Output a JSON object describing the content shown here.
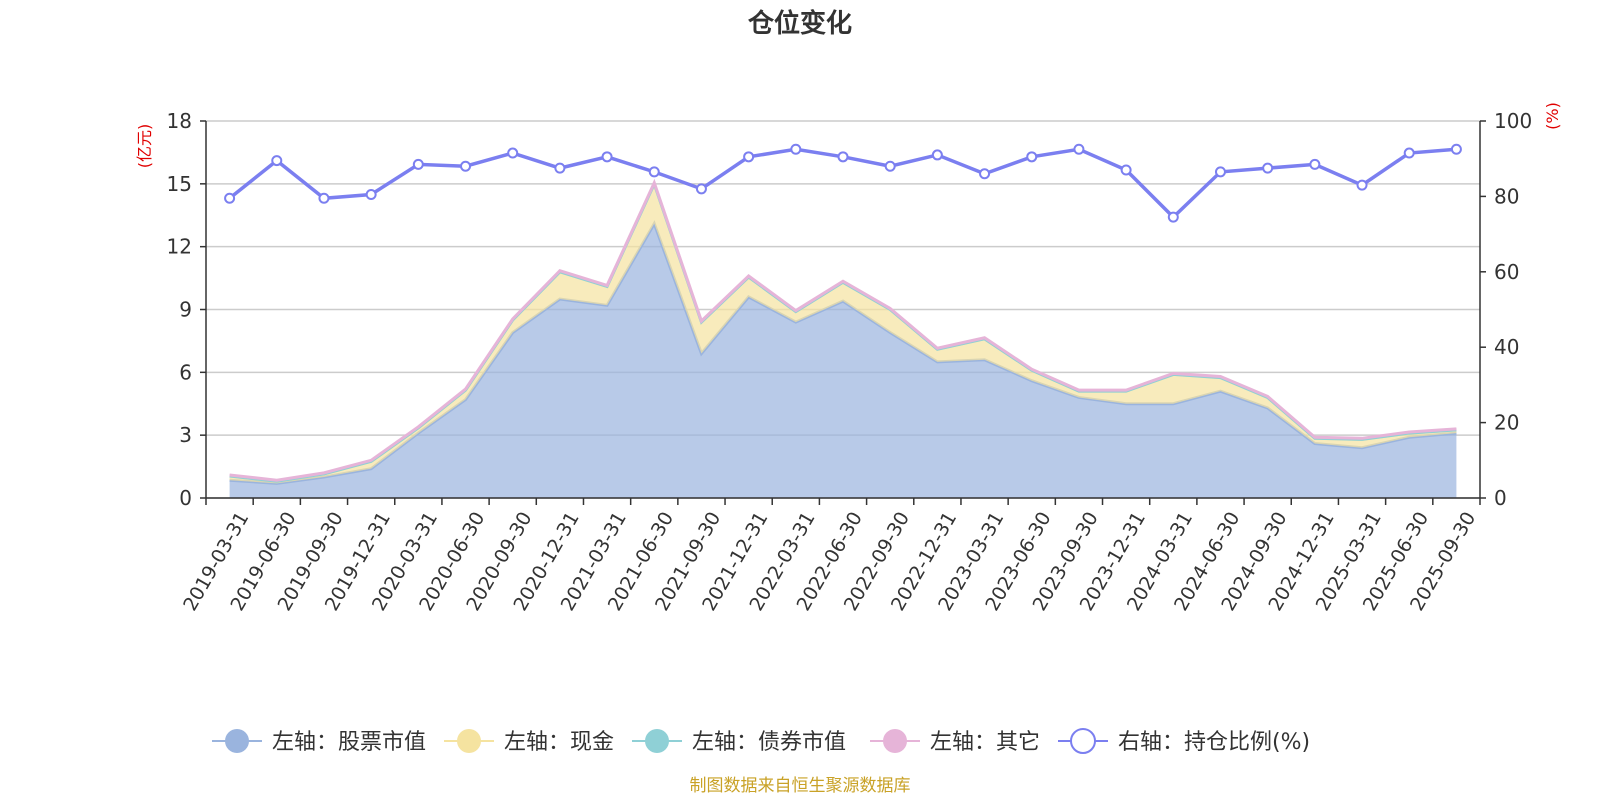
{
  "chart_data": {
    "type": "area",
    "title": "仓位变化",
    "left_axis_unit": "(亿元)",
    "right_axis_unit": "(%)",
    "left_ylim": [
      0,
      18
    ],
    "left_ticks": [
      0,
      3,
      6,
      9,
      12,
      15,
      18
    ],
    "right_ylim": [
      0,
      100
    ],
    "right_ticks": [
      0,
      20,
      40,
      60,
      80,
      100
    ],
    "categories": [
      "2019-03-31",
      "2019-06-30",
      "2019-09-30",
      "2019-12-31",
      "2020-03-31",
      "2020-06-30",
      "2020-09-30",
      "2020-12-31",
      "2021-03-31",
      "2021-06-30",
      "2021-09-30",
      "2021-12-31",
      "2022-03-31",
      "2022-06-30",
      "2022-09-30",
      "2022-12-31",
      "2023-03-31",
      "2023-06-30",
      "2023-09-30",
      "2023-12-31",
      "2024-03-31",
      "2024-06-30",
      "2024-09-30",
      "2024-12-31",
      "2025-03-31",
      "2025-06-30",
      "2025-09-30"
    ],
    "series": [
      {
        "name": "左轴：股票市值",
        "axis": "left",
        "stack": true,
        "color": "#9ab4de",
        "values": [
          0.85,
          0.7,
          1.0,
          1.4,
          3.1,
          4.7,
          7.9,
          9.5,
          9.2,
          13.1,
          6.9,
          9.6,
          8.4,
          9.4,
          7.9,
          6.5,
          6.6,
          5.6,
          4.8,
          4.5,
          4.5,
          5.1,
          4.3,
          2.6,
          2.4,
          2.9,
          3.1
        ]
      },
      {
        "name": "左轴：现金",
        "axis": "left",
        "stack": true,
        "color": "#f5e3a0",
        "values": [
          0.2,
          0.1,
          0.15,
          0.35,
          0.25,
          0.45,
          0.6,
          1.3,
          0.9,
          1.9,
          1.5,
          0.95,
          0.5,
          0.9,
          1.1,
          0.6,
          1.0,
          0.5,
          0.3,
          0.6,
          1.4,
          0.65,
          0.5,
          0.25,
          0.4,
          0.2,
          0.15
        ]
      },
      {
        "name": "左轴：债券市值",
        "axis": "left",
        "stack": true,
        "color": "#8fd0d6",
        "values": [
          0,
          0,
          0,
          0,
          0,
          0,
          0,
          0,
          0,
          0,
          0,
          0,
          0,
          0,
          0,
          0,
          0,
          0,
          0,
          0,
          0,
          0,
          0,
          0,
          0,
          0,
          0
        ]
      },
      {
        "name": "左轴：其它",
        "axis": "left",
        "stack": true,
        "color": "#e6b4d8",
        "values": [
          0.05,
          0.05,
          0.05,
          0.05,
          0.05,
          0.05,
          0.05,
          0.05,
          0.05,
          0.05,
          0.05,
          0.05,
          0.05,
          0.05,
          0.05,
          0.05,
          0.05,
          0.05,
          0.05,
          0.05,
          0.05,
          0.05,
          0.05,
          0.05,
          0.05,
          0.05,
          0.05
        ]
      },
      {
        "name": "右轴：持仓比例(%)",
        "axis": "right",
        "type": "line",
        "color": "#7b7ff0",
        "values": [
          79.5,
          89.5,
          79.5,
          80.5,
          88.5,
          88.0,
          91.5,
          87.5,
          90.5,
          86.5,
          82.0,
          90.5,
          92.5,
          90.5,
          88.0,
          91.0,
          86.0,
          90.5,
          92.5,
          87.0,
          74.5,
          86.5,
          87.5,
          88.5,
          83.0,
          91.5,
          92.5
        ]
      }
    ],
    "source": "制图数据来自恒生聚源数据库"
  }
}
